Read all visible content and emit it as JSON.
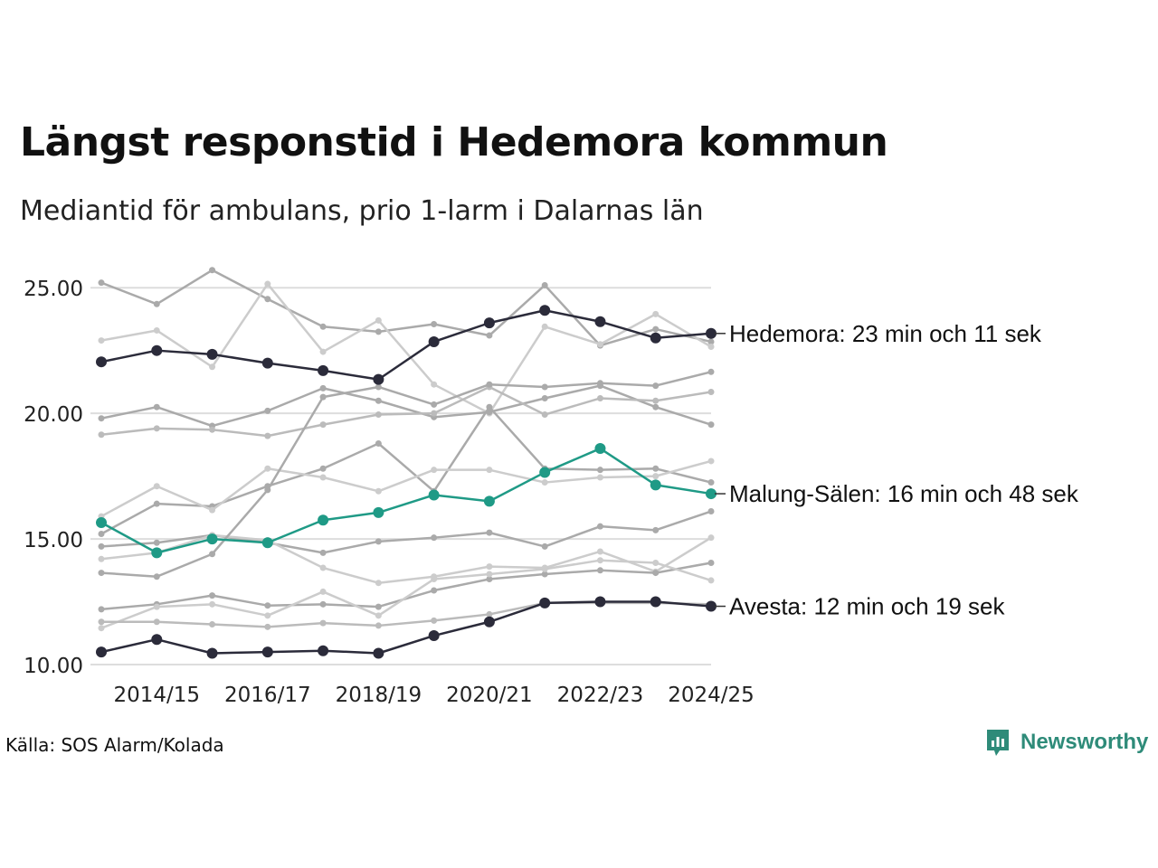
{
  "title": "Längst responstid i Hedemora kommun",
  "subtitle": "Mediantid för ambulans, prio 1-larm i Dalarnas län",
  "source": "Källa: SOS Alarm/Kolada",
  "brand": {
    "name": "Newsworthy",
    "icon": "newsworthy-logo-icon",
    "color": "#2e8b79"
  },
  "chart_data": {
    "type": "line",
    "x": [
      "2013/14",
      "2014/15",
      "2015/16",
      "2016/17",
      "2017/18",
      "2018/19",
      "2019/20",
      "2020/21",
      "2021/22",
      "2022/23",
      "2023/24",
      "2024/25"
    ],
    "xticks": [
      "2014/15",
      "2016/17",
      "2018/19",
      "2020/21",
      "2022/23",
      "2024/25"
    ],
    "ylim": [
      10,
      25.8
    ],
    "yticks": [
      "10.00",
      "15.00",
      "20.00",
      "25.00"
    ],
    "grid": true,
    "background_series": [
      {
        "color": "#aaaaaa",
        "values": [
          25.2,
          24.35,
          25.7,
          24.55,
          23.45,
          23.25,
          23.55,
          23.1,
          25.1,
          22.7,
          23.35,
          22.85
        ]
      },
      {
        "color": "#cccccc",
        "values": [
          22.9,
          23.3,
          21.85,
          25.15,
          22.45,
          23.7,
          21.15,
          20.0,
          23.45,
          22.75,
          23.95,
          22.65
        ]
      },
      {
        "color": "#aaaaaa",
        "values": [
          19.8,
          20.25,
          19.5,
          20.1,
          21.0,
          20.5,
          19.85,
          20.05,
          20.6,
          21.1,
          20.25,
          19.55
        ]
      },
      {
        "color": "#bbbbbb",
        "values": [
          19.15,
          19.4,
          19.35,
          19.1,
          19.55,
          19.95,
          20.0,
          21.05,
          19.95,
          20.6,
          20.5,
          20.85
        ]
      },
      {
        "color": "#aaaaaa",
        "values": [
          15.2,
          16.4,
          16.3,
          17.1,
          17.8,
          18.8,
          16.9,
          20.25,
          17.8,
          17.75,
          17.8,
          17.25
        ]
      },
      {
        "color": "#cccccc",
        "values": [
          15.9,
          17.1,
          16.15,
          17.8,
          17.45,
          16.9,
          17.75,
          17.75,
          17.25,
          17.45,
          17.5,
          18.1
        ]
      },
      {
        "color": "#aaaaaa",
        "values": [
          14.7,
          14.85,
          15.15,
          14.85,
          14.45,
          14.9,
          15.05,
          15.25,
          14.7,
          15.5,
          15.35,
          16.1
        ]
      },
      {
        "color": "#cccccc",
        "values": [
          14.2,
          14.45,
          15.15,
          14.95,
          13.85,
          13.25,
          13.5,
          13.9,
          13.85,
          14.5,
          13.7,
          15.05
        ]
      },
      {
        "color": "#aaaaaa",
        "values": [
          13.65,
          13.5,
          14.4,
          16.95,
          20.65,
          21.05,
          20.35,
          21.15,
          21.05,
          21.2,
          21.1,
          21.65
        ]
      },
      {
        "color": "#aaaaaa",
        "values": [
          12.2,
          12.4,
          12.75,
          12.35,
          12.4,
          12.3,
          12.95,
          13.4,
          13.6,
          13.75,
          13.65,
          14.05
        ]
      },
      {
        "color": "#cccccc",
        "values": [
          11.45,
          12.3,
          12.4,
          11.95,
          12.9,
          11.95,
          13.4,
          13.6,
          13.8,
          14.15,
          14.05,
          13.35
        ]
      },
      {
        "color": "#bbbbbb",
        "values": [
          11.7,
          11.7,
          11.6,
          11.5,
          11.65,
          11.55,
          11.75,
          12.0,
          12.45,
          12.45,
          12.45,
          12.4
        ]
      }
    ],
    "series": [
      {
        "name": "Hedemora",
        "color": "#2b2b3a",
        "label": "Hedemora: 23 min och 11 sek",
        "values": [
          22.05,
          22.5,
          22.35,
          22.0,
          21.7,
          21.35,
          22.85,
          23.6,
          24.1,
          23.65,
          23.0,
          23.18
        ]
      },
      {
        "name": "Malung-Sälen",
        "color": "#1f9a86",
        "label": "Malung-Sälen: 16 min och 48 sek",
        "values": [
          15.65,
          14.45,
          15.0,
          14.85,
          15.75,
          16.05,
          16.75,
          16.5,
          17.65,
          18.6,
          17.15,
          16.8
        ]
      },
      {
        "name": "Avesta",
        "color": "#2b2b3a",
        "label": "Avesta: 12 min och 19 sek",
        "values": [
          10.5,
          11.0,
          10.45,
          10.5,
          10.55,
          10.45,
          11.15,
          11.7,
          12.45,
          12.5,
          12.5,
          12.32
        ]
      }
    ]
  }
}
